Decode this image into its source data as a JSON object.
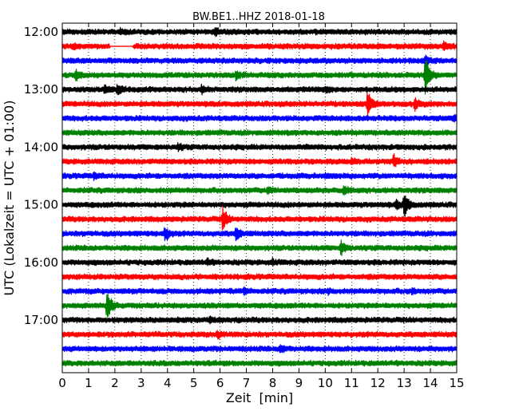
{
  "chart_data": {
    "type": "line",
    "title": "BW.BE1..HHZ 2018-01-18",
    "xlabel": "Zeit  [min]",
    "ylabel": "UTC (Lokalzeit = UTC + 01:00)",
    "xlim": [
      0,
      15
    ],
    "xticks": [
      "0",
      "1",
      "2",
      "3",
      "4",
      "5",
      "6",
      "7",
      "8",
      "9",
      "10",
      "11",
      "12",
      "13",
      "14",
      "15"
    ],
    "ytick_labels": [
      "12:00",
      "13:00",
      "14:00",
      "15:00",
      "16:00",
      "17:00"
    ],
    "grid": "x-dotted",
    "trace_colors": [
      "#000000",
      "#ff0000",
      "#0000ff",
      "#008000"
    ],
    "rows": [
      {
        "start": "12:00",
        "color": "#000000",
        "events": [
          {
            "t": 5.8,
            "amp": 0.25
          },
          {
            "t": 2.2,
            "amp": 0.12
          }
        ]
      },
      {
        "start": "12:15",
        "color": "#ff0000",
        "gap": [
          1.8,
          2.7
        ],
        "events": [
          {
            "t": 14.5,
            "amp": 0.3
          },
          {
            "t": 0.4,
            "amp": 0.12
          }
        ]
      },
      {
        "start": "12:30",
        "color": "#0000ff",
        "events": [
          {
            "t": 13.8,
            "amp": 0.4
          }
        ]
      },
      {
        "start": "12:45",
        "color": "#008000",
        "events": [
          {
            "t": 13.8,
            "amp": 1.6
          },
          {
            "t": 0.5,
            "amp": 0.35
          },
          {
            "t": 6.6,
            "amp": 0.3
          }
        ]
      },
      {
        "start": "13:00",
        "color": "#000000",
        "events": [
          {
            "t": 1.6,
            "amp": 0.35
          },
          {
            "t": 2.1,
            "amp": 0.3
          },
          {
            "t": 5.3,
            "amp": 0.25
          },
          {
            "t": 10.0,
            "amp": 0.2
          }
        ]
      },
      {
        "start": "13:15",
        "color": "#ff0000",
        "events": [
          {
            "t": 11.6,
            "amp": 1.0
          },
          {
            "t": 13.4,
            "amp": 0.45
          }
        ]
      },
      {
        "start": "13:30",
        "color": "#0000ff",
        "events": [
          {
            "t": 14.9,
            "amp": 0.25
          }
        ]
      },
      {
        "start": "13:45",
        "color": "#008000",
        "events": []
      },
      {
        "start": "14:00",
        "color": "#000000",
        "events": [
          {
            "t": 4.4,
            "amp": 0.2
          }
        ]
      },
      {
        "start": "14:15",
        "color": "#ff0000",
        "events": [
          {
            "t": 12.6,
            "amp": 0.45
          },
          {
            "t": 11.0,
            "amp": 0.15
          }
        ]
      },
      {
        "start": "14:30",
        "color": "#0000ff",
        "events": [
          {
            "t": 1.2,
            "amp": 0.2
          },
          {
            "t": 10.0,
            "amp": 0.15
          }
        ]
      },
      {
        "start": "14:45",
        "color": "#008000",
        "events": [
          {
            "t": 7.8,
            "amp": 0.25
          },
          {
            "t": 10.7,
            "amp": 0.25
          }
        ]
      },
      {
        "start": "15:00",
        "color": "#000000",
        "events": [
          {
            "t": 13.0,
            "amp": 1.0
          },
          {
            "t": 12.7,
            "amp": 0.3
          }
        ]
      },
      {
        "start": "15:15",
        "color": "#ff0000",
        "events": [
          {
            "t": 6.1,
            "amp": 0.9
          }
        ]
      },
      {
        "start": "15:30",
        "color": "#0000ff",
        "events": [
          {
            "t": 3.9,
            "amp": 0.55
          },
          {
            "t": 6.6,
            "amp": 0.45
          }
        ]
      },
      {
        "start": "15:45",
        "color": "#008000",
        "events": [
          {
            "t": 10.6,
            "amp": 0.5
          }
        ]
      },
      {
        "start": "16:00",
        "color": "#000000",
        "events": [
          {
            "t": 5.5,
            "amp": 0.2
          },
          {
            "t": 8.0,
            "amp": 0.2
          }
        ]
      },
      {
        "start": "16:15",
        "color": "#ff0000",
        "events": []
      },
      {
        "start": "16:30",
        "color": "#0000ff",
        "events": [
          {
            "t": 6.9,
            "amp": 0.2
          },
          {
            "t": 10.1,
            "amp": 0.15
          },
          {
            "t": 13.3,
            "amp": 0.15
          }
        ]
      },
      {
        "start": "16:45",
        "color": "#008000",
        "events": [
          {
            "t": 1.7,
            "amp": 1.3
          }
        ]
      },
      {
        "start": "17:00",
        "color": "#000000",
        "events": [
          {
            "t": 5.6,
            "amp": 0.15
          }
        ]
      },
      {
        "start": "17:15",
        "color": "#ff0000",
        "events": [
          {
            "t": 5.9,
            "amp": 0.2
          }
        ]
      },
      {
        "start": "17:30",
        "color": "#0000ff",
        "events": [
          {
            "t": 8.3,
            "amp": 0.3
          }
        ]
      },
      {
        "start": "17:45",
        "color": "#008000",
        "events": []
      }
    ]
  }
}
